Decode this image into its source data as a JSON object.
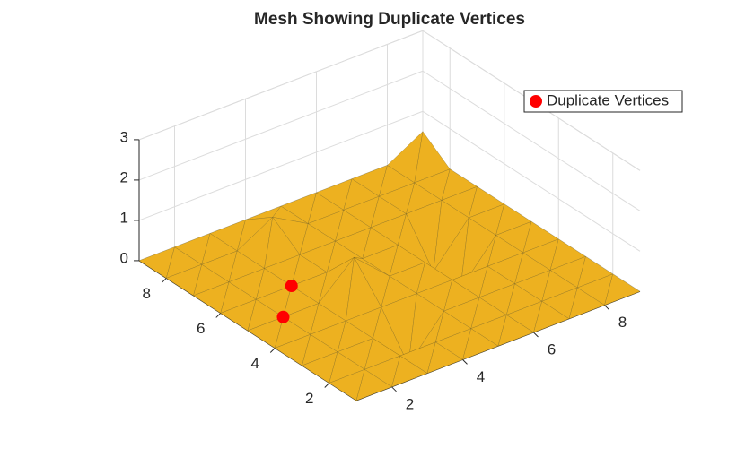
{
  "chart_data": {
    "type": "trisurf",
    "title": "Mesh Showing Duplicate Vertices",
    "x": [
      1,
      2,
      3,
      4,
      5,
      6,
      7,
      8,
      9
    ],
    "y": [
      1,
      2,
      3,
      4,
      5,
      6,
      7,
      8,
      9
    ],
    "z": [
      [
        0,
        0,
        0,
        0,
        0,
        0,
        0,
        0,
        0
      ],
      [
        0,
        0,
        0,
        0,
        0,
        0,
        0,
        0,
        0
      ],
      [
        0,
        0,
        0,
        -1,
        0,
        0,
        0,
        0,
        0
      ],
      [
        0,
        0,
        0,
        0,
        0,
        0,
        0,
        0,
        0
      ],
      [
        0,
        0,
        0,
        0.8,
        0,
        0,
        -1,
        0,
        0
      ],
      [
        0,
        0,
        0,
        0,
        0,
        0,
        -1,
        0,
        0
      ],
      [
        0,
        0,
        0,
        0,
        0,
        0,
        0,
        0,
        0
      ],
      [
        0,
        0,
        0,
        0.5,
        0,
        0,
        0,
        0,
        0
      ],
      [
        0,
        0,
        0,
        0,
        0,
        0,
        0,
        0,
        0.5
      ]
    ],
    "color": "#edb120",
    "edge_color": "#7a6420",
    "series": [
      {
        "name": "Duplicate Vertices",
        "color": "#ff0000",
        "x": [
          3,
          2
        ],
        "y": [
          6,
          5
        ],
        "z": [
          0,
          0
        ]
      }
    ],
    "xlim": [
      1,
      9
    ],
    "ylim": [
      1,
      9
    ],
    "zlim": [
      0,
      3
    ],
    "xticks": [
      2,
      4,
      6,
      8
    ],
    "yticks": [
      2,
      4,
      6,
      8
    ],
    "zticks": [
      0,
      1,
      2,
      3
    ],
    "grid": true,
    "legend": "upper right"
  }
}
